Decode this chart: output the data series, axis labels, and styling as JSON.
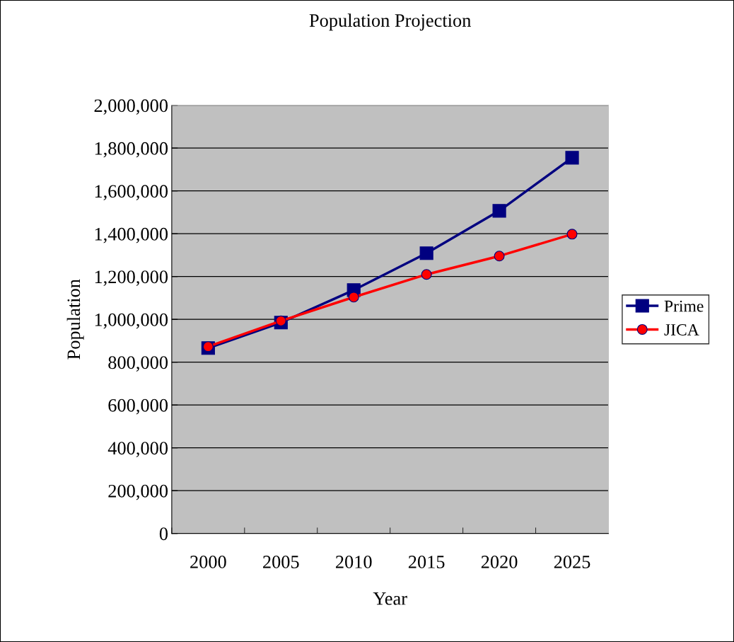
{
  "chart_data": {
    "type": "line",
    "title": "Population Projection",
    "xlabel": "Year",
    "ylabel": "Population",
    "categories": [
      "2000",
      "2005",
      "2010",
      "2015",
      "2020",
      "2025"
    ],
    "series": [
      {
        "name": "Prime",
        "color": "#000080",
        "marker": "square",
        "values": [
          866000,
          985000,
          1137000,
          1309000,
          1507000,
          1755000
        ]
      },
      {
        "name": "JICA",
        "color": "#ff0000",
        "marker": "circle",
        "values": [
          873000,
          993000,
          1104000,
          1210000,
          1296000,
          1398000
        ]
      }
    ],
    "ylim": [
      0,
      2000000
    ],
    "yticks": [
      0,
      {
        "value": 200000,
        "label": "200,000"
      },
      {
        "value": 400000,
        "label": "400,000"
      },
      {
        "value": 600000,
        "label": "600,000"
      },
      {
        "value": 800000,
        "label": "800,000"
      },
      {
        "value": 1000000,
        "label": "1,000,000"
      },
      {
        "value": 1200000,
        "label": "1,200,000"
      },
      {
        "value": 1400000,
        "label": "1,400,000"
      },
      {
        "value": 1600000,
        "label": "1,600,000"
      },
      {
        "value": 1800000,
        "label": "1,800,000"
      },
      {
        "value": 2000000,
        "label": "2,000,000"
      }
    ],
    "grid": "y",
    "legend": "right",
    "line_style": "solid"
  }
}
